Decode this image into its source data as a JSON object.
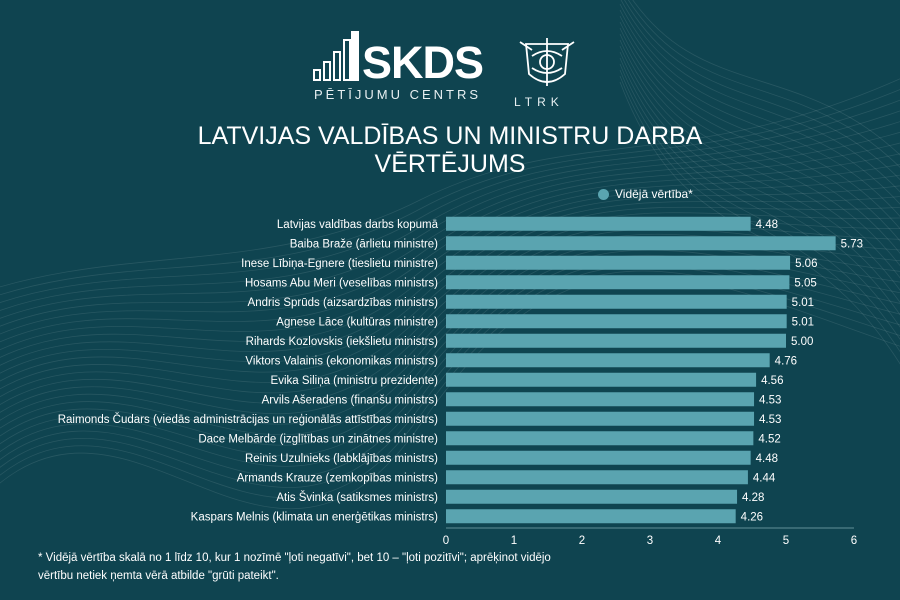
{
  "header": {
    "skds_logo_text": "SKDS",
    "skds_subtitle": "PĒTĪJUMU CENTRS",
    "ltrk_text": "LTRK"
  },
  "colors": {
    "background": "#0f4450",
    "bar": "#5aa4b0",
    "text": "#ffffff"
  },
  "chart_data": {
    "type": "bar",
    "orientation": "horizontal",
    "title": "LATVIJAS VALDĪBAS UN MINISTRU DARBA VĒRTĒJUMS",
    "categories": [
      "Latvijas valdības darbs kopumā",
      "Baiba Braže (ārlietu ministre)",
      "Inese Lībiņa-Egnere (tieslietu ministre)",
      "Hosams Abu Meri (veselības ministrs)",
      "Andris Sprūds (aizsardzības ministrs)",
      "Agnese Lāce (kultūras ministre)",
      "Rihards Kozlovskis (iekšlietu ministrs)",
      "Viktors Valainis (ekonomikas ministrs)",
      "Evika Siliņa (ministru prezidente)",
      "Arvils Ašeradens (finanšu ministrs)",
      "Raimonds Čudars (viedās administrācijas un reģionālās attīstības ministrs)",
      "Dace Melbārde (izglītības un zinātnes ministre)",
      "Reinis Uzulnieks (labklājības ministrs)",
      "Armands Krauze (zemkopības ministrs)",
      "Atis Švinka (satiksmes ministrs)",
      "Kaspars Melnis (klimata un enerģētikas ministrs)"
    ],
    "series": [
      {
        "name": "Vidējā vērtība*",
        "values": [
          4.48,
          5.73,
          5.06,
          5.05,
          5.01,
          5.01,
          5.0,
          4.76,
          4.56,
          4.53,
          4.53,
          4.52,
          4.48,
          4.44,
          4.28,
          4.26
        ],
        "labels": [
          "4.48",
          "5.73",
          "5.06",
          "5.05",
          "5.01",
          "5.01",
          "5.00",
          "4.76",
          "4.56",
          "4.53",
          "4.53",
          "4.52",
          "4.48",
          "4.44",
          "4.28",
          "4.26"
        ]
      }
    ],
    "xlim": [
      0,
      6
    ],
    "xticks": [
      "0",
      "1",
      "2",
      "3",
      "4",
      "5",
      "6"
    ],
    "grid": false,
    "legend_position": "top-right"
  },
  "footnote": "* Vidējā vērtība skalā no 1 līdz 10, kur 1 nozīmē \"ļoti negatīvi\", bet 10 – \"ļoti pozitīvi\"; aprēķinot vidējo vērtību netiek ņemta vērā atbilde \"grūti pateikt\"."
}
